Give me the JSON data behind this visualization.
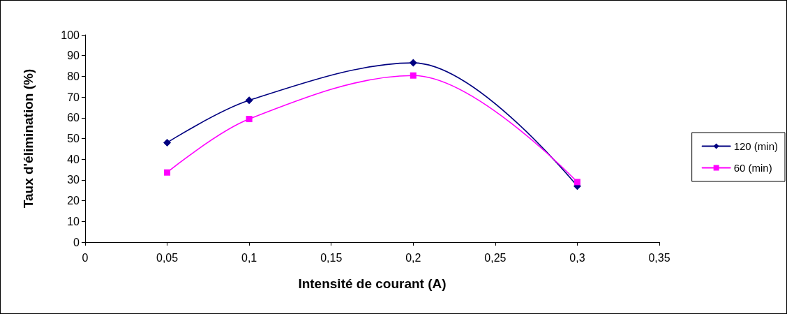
{
  "chart_data": {
    "type": "line",
    "xlabel": "Intensité de courant (A)",
    "ylabel": "Taux d'élimination (%)",
    "x": [
      0.05,
      0.1,
      0.2,
      0.3
    ],
    "series": [
      {
        "name": "120 (min)",
        "color": "#000080",
        "marker": "diamond",
        "values": [
          48,
          68.4,
          86.5,
          27
        ]
      },
      {
        "name": "60 (min)",
        "color": "#ff00ff",
        "marker": "square",
        "values": [
          33.6,
          59.4,
          80.4,
          29
        ]
      }
    ],
    "xlim": [
      0,
      0.35
    ],
    "xticks": [
      0,
      {
        "value": 0.05,
        "label": "0,05"
      },
      {
        "value": 0.1,
        "label": "0,1"
      },
      {
        "value": 0.15,
        "label": "0,15"
      },
      {
        "value": 0.2,
        "label": "0,2"
      },
      {
        "value": 0.25,
        "label": "0,25"
      },
      {
        "value": 0.3,
        "label": "0,3"
      },
      {
        "value": 0.35,
        "label": "0,35"
      }
    ],
    "ylim": [
      0,
      100
    ],
    "yticks": [
      0,
      10,
      20,
      30,
      40,
      50,
      60,
      70,
      80,
      90,
      100
    ],
    "grid": false,
    "legend": "right",
    "line_style": "solid"
  }
}
